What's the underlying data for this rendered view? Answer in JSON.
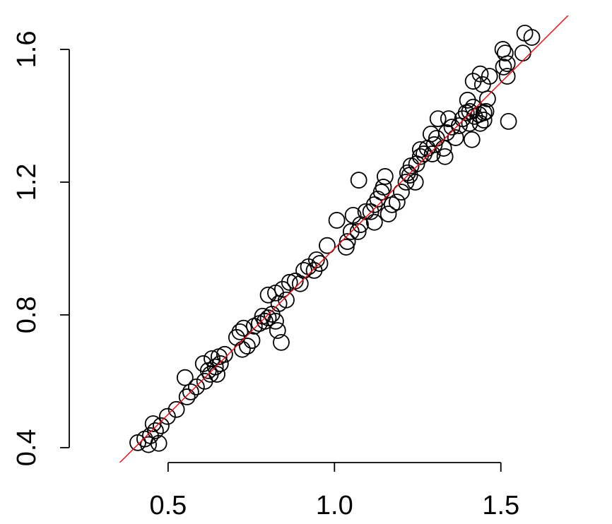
{
  "chart_data": {
    "type": "scatter",
    "title": "",
    "xlabel": "",
    "ylabel": "",
    "xlim": [
      0.203,
      1.8
    ],
    "ylim": [
      0.355,
      1.702
    ],
    "grid": false,
    "legend": "none",
    "x_ticks": [
      0.5,
      1.0,
      1.5
    ],
    "x_tick_labels": [
      "0.5",
      "1.0",
      "1.5"
    ],
    "y_ticks": [
      0.4,
      0.8,
      1.2,
      1.6
    ],
    "y_tick_labels": [
      "0.4",
      "0.8",
      "1.2",
      "1.6"
    ],
    "marker": "open-circle",
    "marker_color": "#000000",
    "reference_line": {
      "type": "identity",
      "intercept": 0,
      "slope": 1,
      "color": "#e8141a"
    },
    "x": [
      0.409,
      0.43,
      0.441,
      0.447,
      0.462,
      0.472,
      0.455,
      0.479,
      0.498,
      0.525,
      0.557,
      0.568,
      0.551,
      0.585,
      0.61,
      0.621,
      0.642,
      0.632,
      0.653,
      0.67,
      0.606,
      0.627,
      0.647,
      0.657,
      0.706,
      0.716,
      0.727,
      0.738,
      0.752,
      0.723,
      0.759,
      0.774,
      0.791,
      0.801,
      0.784,
      0.812,
      0.823,
      0.829,
      0.84,
      0.801,
      0.823,
      0.844,
      0.855,
      0.833,
      0.865,
      0.882,
      0.897,
      0.908,
      0.922,
      0.939,
      0.946,
      0.956,
      0.978,
      1.007,
      1.035,
      1.039,
      1.05,
      1.056,
      1.071,
      1.078,
      1.094,
      1.109,
      1.12,
      1.13,
      1.141,
      1.147,
      1.073,
      1.152,
      1.173,
      1.12,
      1.162,
      1.188,
      1.201,
      1.215,
      1.22,
      1.226,
      1.243,
      1.23,
      1.247,
      1.258,
      1.269,
      1.258,
      1.279,
      1.294,
      1.3,
      1.307,
      1.29,
      1.311,
      1.328,
      1.332,
      1.337,
      1.343,
      1.353,
      1.364,
      1.375,
      1.385,
      1.396,
      1.406,
      1.417,
      1.4,
      1.406,
      1.421,
      1.434,
      1.438,
      1.449,
      1.449,
      1.455,
      1.417,
      1.438,
      1.445,
      1.466,
      1.46,
      1.413,
      1.523,
      1.506,
      1.513,
      1.519,
      1.519,
      1.566,
      1.572,
      1.593,
      1.508
    ],
    "y": [
      0.415,
      0.426,
      0.409,
      0.436,
      0.451,
      0.413,
      0.472,
      0.466,
      0.494,
      0.515,
      0.553,
      0.568,
      0.611,
      0.583,
      0.6,
      0.632,
      0.643,
      0.668,
      0.674,
      0.681,
      0.653,
      0.621,
      0.621,
      0.653,
      0.732,
      0.749,
      0.76,
      0.706,
      0.723,
      0.696,
      0.766,
      0.774,
      0.781,
      0.791,
      0.796,
      0.802,
      0.781,
      0.753,
      0.717,
      0.86,
      0.866,
      0.877,
      0.845,
      0.834,
      0.898,
      0.902,
      0.894,
      0.934,
      0.945,
      0.934,
      0.966,
      0.955,
      1.009,
      1.085,
      1.004,
      1.021,
      1.051,
      1.1,
      1.051,
      1.072,
      1.111,
      1.111,
      1.132,
      1.149,
      1.17,
      1.185,
      1.206,
      1.217,
      1.132,
      1.079,
      1.104,
      1.14,
      1.17,
      1.2,
      1.228,
      1.221,
      1.2,
      1.249,
      1.255,
      1.277,
      1.285,
      1.298,
      1.302,
      1.285,
      1.313,
      1.332,
      1.345,
      1.391,
      1.302,
      1.277,
      1.349,
      1.391,
      1.366,
      1.334,
      1.37,
      1.391,
      1.409,
      1.413,
      1.426,
      1.447,
      1.377,
      1.398,
      1.404,
      1.377,
      1.387,
      1.409,
      1.413,
      1.504,
      1.526,
      1.494,
      1.519,
      1.451,
      1.328,
      1.383,
      1.6,
      1.589,
      1.557,
      1.519,
      1.589,
      1.649,
      1.636,
      1.547
    ]
  }
}
